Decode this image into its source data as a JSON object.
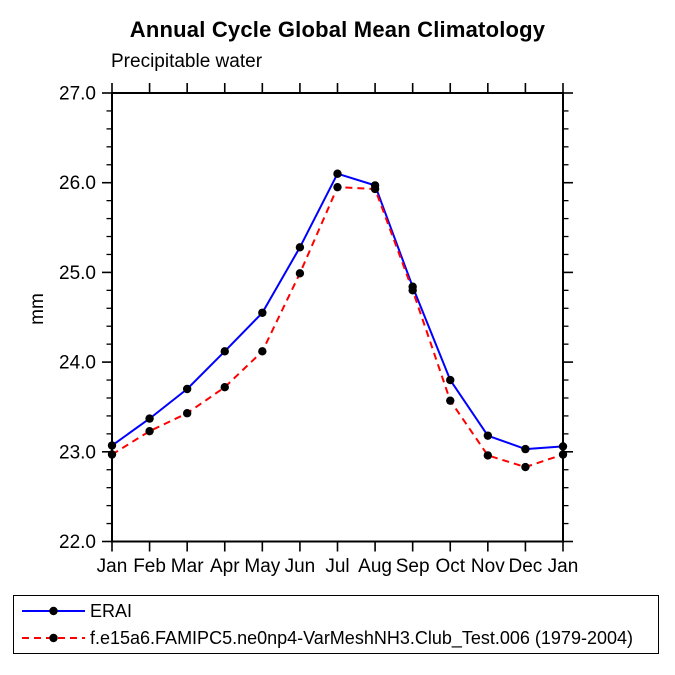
{
  "chart_data": {
    "type": "line",
    "title": "Annual Cycle Global Mean Climatology",
    "subtitle": "Precipitable water",
    "ylabel": "mm",
    "xlabel": "",
    "categories": [
      "Jan",
      "Feb",
      "Mar",
      "Apr",
      "May",
      "Jun",
      "Jul",
      "Aug",
      "Sep",
      "Oct",
      "Nov",
      "Dec",
      "Jan"
    ],
    "ylim": [
      22.0,
      27.0
    ],
    "ytick_major_step": 1.0,
    "ytick_minor_step": 0.2,
    "ytick_labels": [
      "22.0",
      "23.0",
      "24.0",
      "25.0",
      "26.0",
      "27.0"
    ],
    "grid": false,
    "axis_color": "#000000",
    "legend_position": "bottom-left-box",
    "series": [
      {
        "name": "ERAI",
        "color": "#0000ff",
        "line_style": "solid",
        "marker": "filled-circle",
        "marker_color": "#000000",
        "values": [
          23.07,
          23.37,
          23.7,
          24.12,
          24.55,
          25.28,
          26.1,
          25.97,
          24.84,
          23.8,
          23.18,
          23.03,
          23.06
        ]
      },
      {
        "name": "f.e15a6.FAMIPC5.ne0np4-VarMeshNH3.Club_Test.006 (1979-2004)",
        "color": "#ff0000",
        "line_style": "dashed",
        "marker": "filled-circle",
        "marker_color": "#000000",
        "values": [
          22.97,
          23.23,
          23.43,
          23.72,
          24.12,
          24.99,
          25.95,
          25.93,
          24.8,
          23.57,
          22.96,
          22.83,
          22.97
        ]
      }
    ]
  }
}
